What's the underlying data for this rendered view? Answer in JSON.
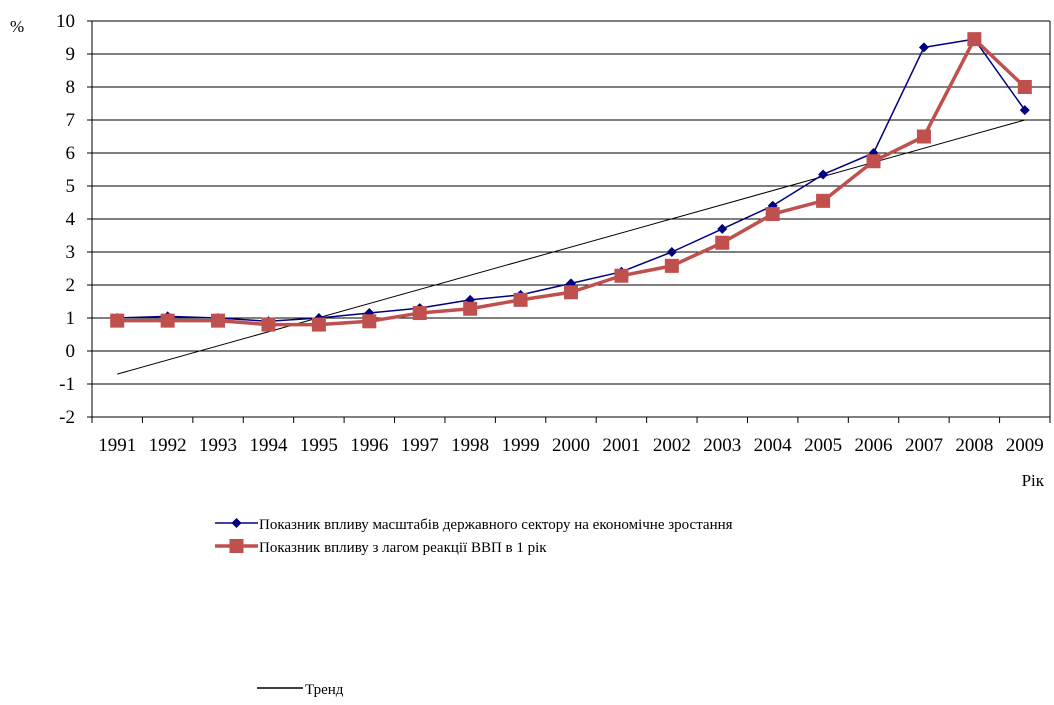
{
  "chart_data": {
    "type": "line",
    "title": "",
    "ylabel": "%",
    "xlabel": "Рік",
    "ylim": [
      -2,
      10
    ],
    "yticks": [
      -2,
      -1,
      0,
      1,
      2,
      3,
      4,
      5,
      6,
      7,
      8,
      9,
      10
    ],
    "grid": true,
    "legend_position": "bottom",
    "categories": [
      "1991",
      "1992",
      "1993",
      "1994",
      "1995",
      "1996",
      "1997",
      "1998",
      "1999",
      "2000",
      "2001",
      "2002",
      "2003",
      "2004",
      "2005",
      "2006",
      "2007",
      "2008",
      "2009"
    ],
    "series": [
      {
        "name": "Показник впливу масштабів державного сектору на економічне зростання",
        "color": "#000080",
        "marker": "diamond",
        "values": [
          1.0,
          1.05,
          1.0,
          0.9,
          1.0,
          1.15,
          1.3,
          1.55,
          1.7,
          2.05,
          2.4,
          3.0,
          3.7,
          4.4,
          5.35,
          6.0,
          9.2,
          9.45,
          7.3
        ]
      },
      {
        "name": "Показник впливу з лагом реакції ВВП в 1 рік",
        "color": "#c0504d",
        "marker": "square",
        "values": [
          0.92,
          0.92,
          0.92,
          0.8,
          0.8,
          0.9,
          1.15,
          1.28,
          1.55,
          1.78,
          2.28,
          2.58,
          3.28,
          4.15,
          4.55,
          5.75,
          6.5,
          9.45,
          8.0
        ]
      },
      {
        "name": "Тренд",
        "color": "#000000",
        "marker": "none",
        "values": [
          -0.7,
          -0.28,
          0.14,
          0.56,
          0.98,
          1.4,
          1.82,
          2.24,
          2.66,
          3.08,
          3.5,
          3.92,
          4.34,
          4.76,
          5.18,
          5.6,
          6.02,
          6.44,
          7.0
        ]
      }
    ]
  }
}
